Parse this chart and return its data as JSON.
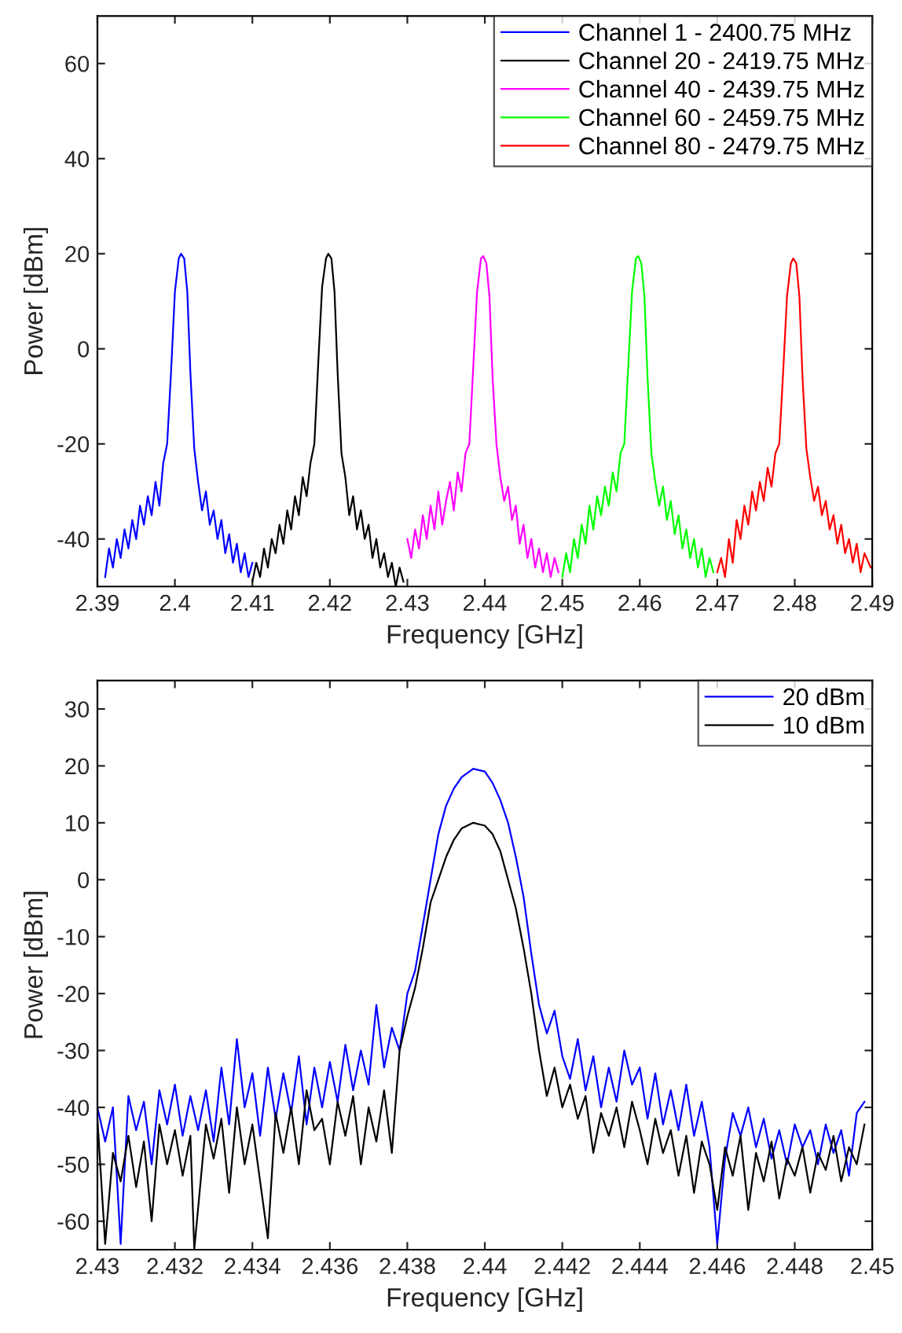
{
  "chart_data": [
    {
      "type": "line",
      "xlabel": "Frequency [GHz]",
      "ylabel": "Power [dBm]",
      "xlim": [
        2.39,
        2.49
      ],
      "xticks": [
        2.39,
        2.4,
        2.41,
        2.42,
        2.43,
        2.44,
        2.45,
        2.46,
        2.47,
        2.48,
        2.49
      ],
      "ylim": [
        -50,
        70
      ],
      "yticks": [
        -40,
        -20,
        0,
        20,
        40,
        60
      ],
      "grid": false,
      "legend": "top right",
      "series": [
        {
          "name": "Channel 1 - 2400.75 MHz",
          "color": "#0000ff",
          "x": [
            2.391,
            2.3915,
            2.392,
            2.3925,
            2.393,
            2.3935,
            2.394,
            2.3945,
            2.395,
            2.3955,
            2.396,
            2.3965,
            2.397,
            2.3975,
            2.398,
            2.3985,
            2.399,
            2.3995,
            2.4,
            2.4005,
            2.4008,
            2.4012,
            2.4016,
            2.402,
            2.4025,
            2.403,
            2.4035,
            2.404,
            2.4045,
            2.405,
            2.4055,
            2.406,
            2.4065,
            2.407,
            2.4075,
            2.408,
            2.4085,
            2.409,
            2.4095,
            2.41
          ],
          "values": [
            -48,
            -42,
            -46,
            -40,
            -44,
            -38,
            -42,
            -36,
            -40,
            -33,
            -37,
            -31,
            -35,
            -28,
            -33,
            -24,
            -20,
            -5,
            12,
            19,
            20,
            19,
            12,
            -5,
            -21,
            -28,
            -34,
            -30,
            -37,
            -34,
            -40,
            -36,
            -43,
            -39,
            -45,
            -41,
            -47,
            -43,
            -48,
            -45
          ]
        },
        {
          "name": "Channel 20 - 2419.75 MHz",
          "color": "#000000",
          "x": [
            2.41,
            2.4105,
            2.411,
            2.4115,
            2.412,
            2.4125,
            2.413,
            2.4135,
            2.414,
            2.4145,
            2.415,
            2.4155,
            2.416,
            2.4165,
            2.417,
            2.4175,
            2.418,
            2.4185,
            2.419,
            2.4195,
            2.4198,
            2.4202,
            2.4206,
            2.421,
            2.4215,
            2.422,
            2.4225,
            2.423,
            2.4235,
            2.424,
            2.4245,
            2.425,
            2.4255,
            2.426,
            2.4265,
            2.427,
            2.4275,
            2.428,
            2.4285,
            2.429,
            2.4295
          ],
          "values": [
            -49,
            -45,
            -48,
            -42,
            -46,
            -40,
            -43,
            -37,
            -41,
            -34,
            -38,
            -31,
            -35,
            -27,
            -31,
            -24,
            -20,
            -3,
            13,
            19,
            20,
            19,
            12,
            -5,
            -22,
            -27,
            -35,
            -31,
            -38,
            -34,
            -40,
            -37,
            -44,
            -40,
            -46,
            -43,
            -48,
            -45,
            -50,
            -46,
            -49
          ]
        },
        {
          "name": "Channel 40 - 2439.75 MHz",
          "color": "#ff00ff",
          "x": [
            2.43,
            2.4305,
            2.431,
            2.4315,
            2.432,
            2.4325,
            2.433,
            2.4335,
            2.434,
            2.4345,
            2.435,
            2.4355,
            2.436,
            2.4365,
            2.437,
            2.4375,
            2.438,
            2.4385,
            2.439,
            2.4395,
            2.4398,
            2.4402,
            2.4406,
            2.441,
            2.4415,
            2.442,
            2.4425,
            2.443,
            2.4435,
            2.444,
            2.4445,
            2.445,
            2.4455,
            2.446,
            2.4465,
            2.447,
            2.4475,
            2.448,
            2.4485,
            2.449,
            2.4495
          ],
          "values": [
            -40,
            -44,
            -38,
            -42,
            -35,
            -40,
            -33,
            -38,
            -30,
            -37,
            -32,
            -28,
            -34,
            -26,
            -30,
            -22,
            -20,
            -4,
            12,
            19,
            19.5,
            18,
            11,
            -6,
            -20,
            -27,
            -32,
            -29,
            -36,
            -33,
            -41,
            -37,
            -44,
            -40,
            -46,
            -42,
            -47,
            -43,
            -48,
            -44,
            -47
          ]
        },
        {
          "name": "Channel 60 - 2459.75 MHz",
          "color": "#00ff00",
          "x": [
            2.45,
            2.4505,
            2.451,
            2.4515,
            2.452,
            2.4525,
            2.453,
            2.4535,
            2.454,
            2.4545,
            2.455,
            2.4555,
            2.456,
            2.4565,
            2.457,
            2.4575,
            2.458,
            2.4585,
            2.459,
            2.4595,
            2.4598,
            2.4602,
            2.4606,
            2.461,
            2.4615,
            2.462,
            2.4625,
            2.463,
            2.4635,
            2.464,
            2.4645,
            2.465,
            2.4655,
            2.466,
            2.4665,
            2.467,
            2.4675,
            2.468,
            2.4685,
            2.469,
            2.4695
          ],
          "values": [
            -48,
            -43,
            -47,
            -40,
            -44,
            -37,
            -41,
            -33,
            -38,
            -31,
            -35,
            -29,
            -33,
            -26,
            -30,
            -22,
            -20,
            -4,
            12,
            19,
            19.5,
            18,
            11,
            -6,
            -22,
            -28,
            -33,
            -29,
            -36,
            -32,
            -39,
            -35,
            -42,
            -38,
            -44,
            -40,
            -46,
            -42,
            -48,
            -44,
            -47
          ]
        },
        {
          "name": "Channel 80 - 2479.75 MHz",
          "color": "#ff0000",
          "x": [
            2.47,
            2.4705,
            2.471,
            2.4715,
            2.472,
            2.4725,
            2.473,
            2.4735,
            2.474,
            2.4745,
            2.475,
            2.4755,
            2.476,
            2.4765,
            2.477,
            2.4775,
            2.478,
            2.4785,
            2.479,
            2.4795,
            2.4798,
            2.4802,
            2.4806,
            2.481,
            2.4815,
            2.482,
            2.4825,
            2.483,
            2.4835,
            2.484,
            2.4845,
            2.485,
            2.4855,
            2.486,
            2.4865,
            2.487,
            2.4875,
            2.488,
            2.4885,
            2.489,
            2.4898
          ],
          "values": [
            -47,
            -44,
            -48,
            -40,
            -45,
            -36,
            -40,
            -33,
            -37,
            -30,
            -34,
            -28,
            -32,
            -25,
            -29,
            -22,
            -20,
            -5,
            11,
            18,
            19,
            18,
            11,
            -6,
            -21,
            -27,
            -32,
            -29,
            -35,
            -32,
            -38,
            -35,
            -41,
            -37,
            -43,
            -40,
            -45,
            -41,
            -47,
            -43,
            -46
          ]
        }
      ]
    },
    {
      "type": "line",
      "xlabel": "Frequency [GHz]",
      "ylabel": "Power [dBm]",
      "xlim": [
        2.43,
        2.45
      ],
      "xticks": [
        2.43,
        2.432,
        2.434,
        2.436,
        2.438,
        2.44,
        2.442,
        2.444,
        2.446,
        2.448,
        2.45
      ],
      "ylim": [
        -65,
        35
      ],
      "yticks": [
        -60,
        -50,
        -40,
        -30,
        -20,
        -10,
        0,
        10,
        20,
        30
      ],
      "grid": false,
      "legend": "top right",
      "series": [
        {
          "name": "20 dBm",
          "color": "#0000ff",
          "x": [
            2.43,
            2.4302,
            2.4304,
            2.4306,
            2.4308,
            2.431,
            2.4312,
            2.4314,
            2.4316,
            2.4318,
            2.432,
            2.4322,
            2.4324,
            2.4326,
            2.4328,
            2.433,
            2.4332,
            2.4334,
            2.4336,
            2.4338,
            2.434,
            2.4342,
            2.4344,
            2.4346,
            2.4348,
            2.435,
            2.4352,
            2.4354,
            2.4356,
            2.4358,
            2.436,
            2.4362,
            2.4364,
            2.4366,
            2.4368,
            2.437,
            2.4372,
            2.4374,
            2.4376,
            2.4378,
            2.438,
            2.4382,
            2.4384,
            2.4386,
            2.4388,
            2.439,
            2.4392,
            2.4394,
            2.4397,
            2.44,
            2.4402,
            2.4404,
            2.4406,
            2.4408,
            2.441,
            2.4412,
            2.4414,
            2.4416,
            2.4418,
            2.442,
            2.4422,
            2.4424,
            2.4426,
            2.4428,
            2.443,
            2.4432,
            2.4434,
            2.4436,
            2.4438,
            2.444,
            2.4442,
            2.4444,
            2.4446,
            2.4448,
            2.445,
            2.4452,
            2.4454,
            2.4456,
            2.4458,
            2.446,
            2.4462,
            2.4464,
            2.4466,
            2.4468,
            2.447,
            2.4472,
            2.4474,
            2.4476,
            2.4478,
            2.448,
            2.4482,
            2.4484,
            2.4486,
            2.4488,
            2.449,
            2.4492,
            2.4494,
            2.4496,
            2.4498
          ],
          "values": [
            -40,
            -46,
            -40,
            -64,
            -38,
            -44,
            -39,
            -50,
            -37,
            -43,
            -36,
            -45,
            -38,
            -44,
            -37,
            -46,
            -33,
            -43,
            -28,
            -40,
            -34,
            -45,
            -33,
            -42,
            -34,
            -41,
            -31,
            -43,
            -33,
            -40,
            -32,
            -39,
            -29,
            -37,
            -30,
            -36,
            -22,
            -33,
            -26,
            -30,
            -20,
            -16,
            -8,
            0,
            8,
            13,
            16,
            18,
            19.5,
            19,
            17,
            14,
            10,
            4,
            -3,
            -13,
            -22,
            -27,
            -23,
            -31,
            -35,
            -28,
            -37,
            -31,
            -40,
            -33,
            -39,
            -30,
            -36,
            -33,
            -42,
            -34,
            -43,
            -37,
            -44,
            -36,
            -45,
            -39,
            -47,
            -64,
            -49,
            -41,
            -45,
            -40,
            -47,
            -42,
            -49,
            -44,
            -50,
            -43,
            -47,
            -44,
            -50,
            -43,
            -48,
            -44,
            -52,
            -41,
            -39
          ]
        },
        {
          "name": "10 dBm",
          "color": "#000000",
          "x": [
            2.43,
            2.4302,
            2.4304,
            2.4306,
            2.4308,
            2.431,
            2.4312,
            2.4314,
            2.4316,
            2.4318,
            2.432,
            2.4322,
            2.4324,
            2.4325,
            2.4328,
            2.433,
            2.4332,
            2.4334,
            2.4336,
            2.4338,
            2.434,
            2.4344,
            2.4346,
            2.4348,
            2.435,
            2.4352,
            2.4354,
            2.4356,
            2.4358,
            2.436,
            2.4362,
            2.4364,
            2.4366,
            2.4368,
            2.437,
            2.4372,
            2.4374,
            2.4376,
            2.4378,
            2.438,
            2.4382,
            2.4384,
            2.4386,
            2.4388,
            2.439,
            2.4392,
            2.4394,
            2.4397,
            2.44,
            2.4402,
            2.4404,
            2.4406,
            2.4408,
            2.441,
            2.4412,
            2.4414,
            2.4416,
            2.4418,
            2.442,
            2.4422,
            2.4424,
            2.4426,
            2.4428,
            2.443,
            2.4432,
            2.4434,
            2.4436,
            2.4438,
            2.444,
            2.4442,
            2.4444,
            2.4446,
            2.4448,
            2.445,
            2.4452,
            2.4454,
            2.4456,
            2.4458,
            2.446,
            2.4462,
            2.4464,
            2.4466,
            2.4468,
            2.447,
            2.4472,
            2.4474,
            2.4476,
            2.4478,
            2.448,
            2.4482,
            2.4484,
            2.4486,
            2.4488,
            2.449,
            2.4492,
            2.4494,
            2.4496,
            2.4498
          ],
          "values": [
            -42,
            -64,
            -48,
            -53,
            -45,
            -54,
            -46,
            -60,
            -43,
            -50,
            -44,
            -52,
            -45,
            -65,
            -43,
            -49,
            -42,
            -55,
            -40,
            -50,
            -43,
            -63,
            -41,
            -48,
            -40,
            -50,
            -37,
            -44,
            -42,
            -50,
            -39,
            -45,
            -38,
            -50,
            -40,
            -46,
            -37,
            -48,
            -30,
            -24,
            -19,
            -12,
            -4,
            0,
            4,
            7,
            9,
            10,
            9.5,
            8,
            5,
            0,
            -5,
            -12,
            -20,
            -30,
            -38,
            -33,
            -40,
            -36,
            -42,
            -38,
            -48,
            -41,
            -45,
            -40,
            -47,
            -39,
            -44,
            -50,
            -42,
            -48,
            -44,
            -52,
            -45,
            -55,
            -46,
            -50,
            -58,
            -47,
            -52,
            -45,
            -58,
            -48,
            -53,
            -46,
            -56,
            -49,
            -52,
            -47,
            -55,
            -48,
            -51,
            -45,
            -53,
            -47,
            -50,
            -43
          ]
        }
      ]
    }
  ]
}
